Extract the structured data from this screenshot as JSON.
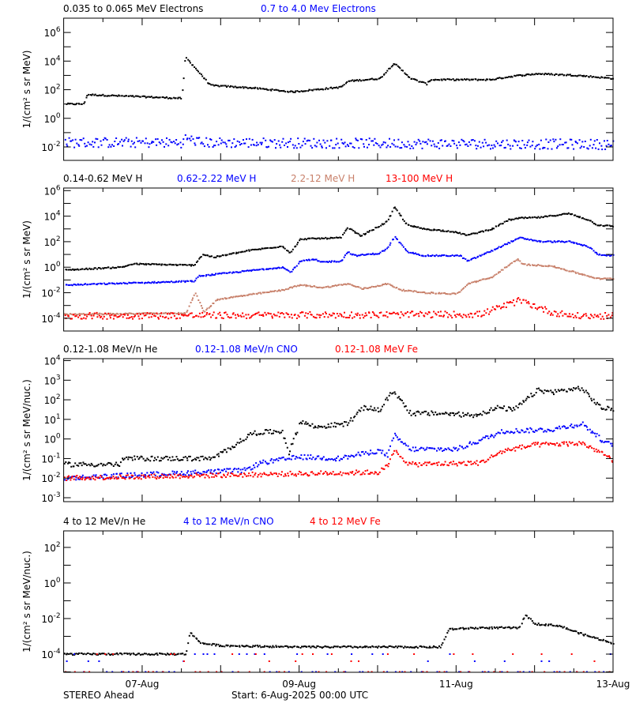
{
  "footer": {
    "left": "STEREO Ahead",
    "center": "Start:  6-Aug-2025 00:00 UTC"
  },
  "chart_data": [
    {
      "type": "scatter",
      "y_scale": "log",
      "ylabel": "1/(cm² s sr MeV)",
      "ylim": [
        0.00115,
        10000000.0
      ],
      "ytick_labels": [
        {
          "exp": -2,
          "text": "10",
          "sup": "-2"
        },
        {
          "exp": 0,
          "text": "10",
          "sup": "0"
        },
        {
          "exp": 2,
          "text": "10",
          "sup": "2"
        },
        {
          "exp": 4,
          "text": "10",
          "sup": "4"
        },
        {
          "exp": 6,
          "text": "10",
          "sup": "6"
        }
      ],
      "series": [
        {
          "name": "0.035 to 0.065 MeV Electrons",
          "color": "#000000",
          "points": [
            [
              "2025-08-06 00:30",
              10
            ],
            [
              "2025-08-06 06:00",
              10
            ],
            [
              "2025-08-06 07:00",
              45
            ],
            [
              "2025-08-07 12:00",
              25
            ],
            [
              "2025-08-07 13:00",
              20000
            ],
            [
              "2025-08-07 20:40",
              200
            ],
            [
              "2025-08-08 09:50",
              130
            ],
            [
              "2025-08-08 21:50",
              70
            ],
            [
              "2025-08-09 12:30",
              150
            ],
            [
              "2025-08-09 15:00",
              400
            ],
            [
              "2025-08-10 00:30",
              600
            ],
            [
              "2025-08-10 04:50",
              7000
            ],
            [
              "2025-08-10 10:00",
              600
            ],
            [
              "2025-08-10 14:50",
              250
            ],
            [
              "2025-08-10 16:00",
              500
            ],
            [
              "2025-08-11 10:20",
              500
            ],
            [
              "2025-08-11 17:30",
              900
            ],
            [
              "2025-08-12 00:40",
              1300
            ],
            [
              "2025-08-12 12:40",
              1000
            ],
            [
              "2025-08-13 00:00",
              600
            ]
          ]
        },
        {
          "name": "0.7 to 4.0 Mev Electrons",
          "color": "#0000ff",
          "points": [
            [
              "2025-08-06 00:00",
              0.02
            ],
            [
              "2025-08-07 12:30",
              0.02
            ],
            [
              "2025-08-07 13:00",
              0.04
            ],
            [
              "2025-08-07 18:00",
              0.02
            ],
            [
              "2025-08-13 00:00",
              0.015
            ]
          ]
        }
      ]
    },
    {
      "type": "scatter",
      "y_scale": "log",
      "ylabel": "1/(cm² s sr MeV)",
      "ylim": [
        1e-05,
        1600000.0
      ],
      "ytick_labels": [
        {
          "exp": -4,
          "text": "10",
          "sup": "-4"
        },
        {
          "exp": -2,
          "text": "10",
          "sup": "-2"
        },
        {
          "exp": 0,
          "text": "10",
          "sup": "0"
        },
        {
          "exp": 2,
          "text": "10",
          "sup": "2"
        },
        {
          "exp": 4,
          "text": "10",
          "sup": "4"
        },
        {
          "exp": 6,
          "text": "10",
          "sup": "6"
        }
      ],
      "series": [
        {
          "name": "0.14-0.62 MeV H",
          "color": "#000000",
          "points": [
            [
              "2025-08-06 00:15",
              0.6
            ],
            [
              "2025-08-06 17:30",
              1
            ],
            [
              "2025-08-06 21:00",
              1.8
            ],
            [
              "2025-08-07 15:40",
              1.4
            ],
            [
              "2025-08-07 18:15",
              10
            ],
            [
              "2025-08-07 21:50",
              6
            ],
            [
              "2025-08-08 08:50",
              21
            ],
            [
              "2025-08-08 18:40",
              44
            ],
            [
              "2025-08-08 21:10",
              13
            ],
            [
              "2025-08-09 00:15",
              160
            ],
            [
              "2025-08-09 12:40",
              200
            ],
            [
              "2025-08-09 14:40",
              1300
            ],
            [
              "2025-08-09 18:40",
              280
            ],
            [
              "2025-08-10 00:15",
              1600
            ],
            [
              "2025-08-10 02:50",
              4000
            ],
            [
              "2025-08-10 05:00",
              50000
            ],
            [
              "2025-08-10 08:50",
              2000
            ],
            [
              "2025-08-10 13:55",
              1000
            ],
            [
              "2025-08-10 22:35",
              630
            ],
            [
              "2025-08-11 03:20",
              320
            ],
            [
              "2025-08-11 10:50",
              1000
            ],
            [
              "2025-08-11 15:50",
              5000
            ],
            [
              "2025-08-11 19:25",
              7000
            ],
            [
              "2025-08-12 01:40",
              8000
            ],
            [
              "2025-08-12 10:20",
              16000
            ],
            [
              "2025-08-12 16:20",
              5000
            ],
            [
              "2025-08-12 19:00",
              2000
            ],
            [
              "2025-08-13 00:00",
              1600
            ]
          ]
        },
        {
          "name": "0.62-2.22 MeV H",
          "color": "#0000ff",
          "points": [
            [
              "2025-08-06 00:15",
              0.04
            ],
            [
              "2025-08-07 15:40",
              0.08
            ],
            [
              "2025-08-07 17:15",
              0.2
            ],
            [
              "2025-08-08 18:40",
              1
            ],
            [
              "2025-08-08 21:10",
              0.4
            ],
            [
              "2025-08-09 00:15",
              3
            ],
            [
              "2025-08-09 04:50",
              4
            ],
            [
              "2025-08-09 06:00",
              2.5
            ],
            [
              "2025-08-09 12:40",
              3
            ],
            [
              "2025-08-09 14:40",
              16
            ],
            [
              "2025-08-09 16:50",
              8
            ],
            [
              "2025-08-10 00:15",
              12
            ],
            [
              "2025-08-10 02:50",
              30
            ],
            [
              "2025-08-10 05:00",
              250
            ],
            [
              "2025-08-10 08:50",
              16
            ],
            [
              "2025-08-10 13:55",
              8
            ],
            [
              "2025-08-11 01:00",
              8
            ],
            [
              "2025-08-11 03:20",
              3
            ],
            [
              "2025-08-11 10:50",
              20
            ],
            [
              "2025-08-11 15:50",
              80
            ],
            [
              "2025-08-11 19:25",
              200
            ],
            [
              "2025-08-12 01:40",
              100
            ],
            [
              "2025-08-12 10:20",
              100
            ],
            [
              "2025-08-12 16:20",
              40
            ],
            [
              "2025-08-12 19:10",
              10
            ],
            [
              "2025-08-13 00:00",
              8
            ]
          ]
        },
        {
          "name": "2.2-12 MeV H",
          "color": "#c8806a",
          "points": [
            [
              "2025-08-06 00:00",
              0.0002
            ],
            [
              "2025-08-07 13:10",
              0.00025
            ],
            [
              "2025-08-07 16:05",
              0.01
            ],
            [
              "2025-08-07 18:40",
              0.0003
            ],
            [
              "2025-08-07 22:50",
              0.003
            ],
            [
              "2025-08-08 18:40",
              0.016
            ],
            [
              "2025-08-09 00:15",
              0.04
            ],
            [
              "2025-08-09 07:10",
              0.025
            ],
            [
              "2025-08-09 14:40",
              0.05
            ],
            [
              "2025-08-09 19:10",
              0.02
            ],
            [
              "2025-08-10 02:50",
              0.05
            ],
            [
              "2025-08-10 07:10",
              0.016
            ],
            [
              "2025-08-10 14:25",
              0.01
            ],
            [
              "2025-08-11 00:00",
              0.008
            ],
            [
              "2025-08-11 02:25",
              0.025
            ],
            [
              "2025-08-11 03:20",
              0.05
            ],
            [
              "2025-08-11 10:50",
              0.16
            ],
            [
              "2025-08-11 14:25",
              0.8
            ],
            [
              "2025-08-11 18:40",
              4
            ],
            [
              "2025-08-11 20:25",
              1.6
            ],
            [
              "2025-08-12 04:50",
              1.25
            ],
            [
              "2025-08-12 12:00",
              0.4
            ],
            [
              "2025-08-12 19:10",
              0.125
            ],
            [
              "2025-08-13 00:00",
              0.125
            ]
          ]
        },
        {
          "name": "13-100 MeV H",
          "color": "#ff0000",
          "points": [
            [
              "2025-08-06 00:00",
              0.00015
            ],
            [
              "2025-08-11 07:10",
              0.0002
            ],
            [
              "2025-08-11 19:25",
              0.0025
            ],
            [
              "2025-08-12 04:50",
              0.0003
            ],
            [
              "2025-08-12 12:00",
              0.00015
            ],
            [
              "2025-08-13 00:00",
              0.00015
            ]
          ]
        }
      ]
    },
    {
      "type": "scatter",
      "y_scale": "log",
      "ylabel": "1/(cm² s sr MeV/nuc.)",
      "ylim": [
        0.00063,
        12600
      ],
      "ytick_labels": [
        {
          "exp": -3,
          "text": "10",
          "sup": "-3"
        },
        {
          "exp": -2,
          "text": "10",
          "sup": "-2"
        },
        {
          "exp": -1,
          "text": "10",
          "sup": "-1"
        },
        {
          "exp": 0,
          "text": "10",
          "sup": "0"
        },
        {
          "exp": 1,
          "text": "10",
          "sup": "1"
        },
        {
          "exp": 2,
          "text": "10",
          "sup": "2"
        },
        {
          "exp": 3,
          "text": "10",
          "sup": "3"
        },
        {
          "exp": 4,
          "text": "10",
          "sup": "4"
        }
      ],
      "series": [
        {
          "name": "0.12-1.08 MeV/n He",
          "color": "#000000",
          "points": [
            [
              "2025-08-06 00:00",
              0.05
            ],
            [
              "2025-08-06 17:20",
              0.05
            ],
            [
              "2025-08-06 18:00",
              0.1
            ],
            [
              "2025-08-07 21:35",
              0.1
            ],
            [
              "2025-08-08 04:50",
              0.6
            ],
            [
              "2025-08-08 09:35",
              2
            ],
            [
              "2025-08-08 18:40",
              2.5
            ],
            [
              "2025-08-08 20:40",
              0.2
            ],
            [
              "2025-08-09 00:15",
              8
            ],
            [
              "2025-08-09 04:50",
              4
            ],
            [
              "2025-08-09 14:25",
              6
            ],
            [
              "2025-08-09 19:40",
              40
            ],
            [
              "2025-08-10 00:30",
              30
            ],
            [
              "2025-08-10 04:35",
              300
            ],
            [
              "2025-08-10 10:00",
              20
            ],
            [
              "2025-08-10 19:40",
              20
            ],
            [
              "2025-08-11 05:30",
              16
            ],
            [
              "2025-08-11 12:40",
              40
            ],
            [
              "2025-08-11 17:30",
              30
            ],
            [
              "2025-08-12 00:40",
              300
            ],
            [
              "2025-08-12 05:30",
              250
            ],
            [
              "2025-08-12 14:00",
              400
            ],
            [
              "2025-08-12 20:00",
              40
            ],
            [
              "2025-08-13 00:00",
              30
            ]
          ]
        },
        {
          "name": "0.12-1.08 MeV/n CNO",
          "color": "#0000ff",
          "points": [
            [
              "2025-08-06 00:00",
              0.01
            ],
            [
              "2025-08-08 07:10",
              0.025
            ],
            [
              "2025-08-08 12:00",
              0.06
            ],
            [
              "2025-08-09 00:15",
              0.12
            ],
            [
              "2025-08-09 12:00",
              0.1
            ],
            [
              "2025-08-10 00:00",
              0.25
            ],
            [
              "2025-08-10 02:50",
              0.15
            ],
            [
              "2025-08-10 05:00",
              1.5
            ],
            [
              "2025-08-10 09:35",
              0.3
            ],
            [
              "2025-08-11 00:00",
              0.3
            ],
            [
              "2025-08-11 14:25",
              2.5
            ],
            [
              "2025-08-12 04:50",
              3
            ],
            [
              "2025-08-12 14:25",
              6
            ],
            [
              "2025-08-12 21:35",
              0.6
            ],
            [
              "2025-08-13 00:00",
              0.5
            ]
          ]
        },
        {
          "name": "0.12-1.08 MeV Fe",
          "color": "#ff0000",
          "points": [
            [
              "2025-08-06 00:00",
              0.01
            ],
            [
              "2025-08-10 00:00",
              0.02
            ],
            [
              "2025-08-10 02:50",
              0.04
            ],
            [
              "2025-08-10 05:00",
              0.25
            ],
            [
              "2025-08-10 09:35",
              0.05
            ],
            [
              "2025-08-11 07:10",
              0.06
            ],
            [
              "2025-08-11 14:25",
              0.25
            ],
            [
              "2025-08-12 00:00",
              0.5
            ],
            [
              "2025-08-12 14:25",
              0.6
            ],
            [
              "2025-08-12 21:35",
              0.15
            ],
            [
              "2025-08-13 00:00",
              0.06
            ]
          ]
        }
      ]
    },
    {
      "type": "scatter",
      "y_scale": "log",
      "ylabel": "1/(cm² s sr MeV/nuc.)",
      "ylim": [
        9.5e-06,
        850
      ],
      "ytick_labels": [
        {
          "exp": -4,
          "text": "10",
          "sup": "-4"
        },
        {
          "exp": -2,
          "text": "10",
          "sup": "-2"
        },
        {
          "exp": 0,
          "text": "10",
          "sup": "0"
        },
        {
          "exp": 2,
          "text": "10",
          "sup": "2"
        }
      ],
      "series": [
        {
          "name": "4 to 12 MeV/n He",
          "color": "#000000",
          "points": [
            [
              "2025-08-06 00:00",
              0.0001
            ],
            [
              "2025-08-07 13:10",
              0.0001
            ],
            [
              "2025-08-07 14:25",
              0.0016
            ],
            [
              "2025-08-07 18:00",
              0.0004
            ],
            [
              "2025-08-08 00:00",
              0.0003
            ],
            [
              "2025-08-09 00:00",
              0.00025
            ],
            [
              "2025-08-10 19:10",
              0.00025
            ],
            [
              "2025-08-10 21:35",
              0.0025
            ],
            [
              "2025-08-11 07:10",
              0.003
            ],
            [
              "2025-08-11 19:10",
              0.003
            ],
            [
              "2025-08-11 21:05",
              0.016
            ],
            [
              "2025-08-12 00:00",
              0.005
            ],
            [
              "2025-08-12 07:10",
              0.004
            ],
            [
              "2025-08-12 14:25",
              0.0013
            ],
            [
              "2025-08-13 00:00",
              0.0004
            ]
          ]
        },
        {
          "name": "4 to 12 MeV/n CNO",
          "color": "#0000ff",
          "points": [
            [
              "2025-08-06 00:00",
              1e-05
            ],
            [
              "2025-08-13 00:00",
              1e-05
            ]
          ]
        },
        {
          "name": "4 to 12 MeV Fe",
          "color": "#ff0000",
          "points": [
            [
              "2025-08-06 00:00",
              1e-05
            ],
            [
              "2025-08-13 00:00",
              1e-05
            ]
          ]
        }
      ]
    }
  ],
  "x_axis": {
    "range": [
      "2025-08-06 00:00",
      "2025-08-13 00:00"
    ],
    "tick_labels": [
      {
        "date": "2025-08-07 00:00",
        "label": "07-Aug"
      },
      {
        "date": "2025-08-09 00:00",
        "label": "09-Aug"
      },
      {
        "date": "2025-08-11 00:00",
        "label": "11-Aug"
      },
      {
        "date": "2025-08-13 00:00",
        "label": "13-Aug"
      }
    ]
  }
}
